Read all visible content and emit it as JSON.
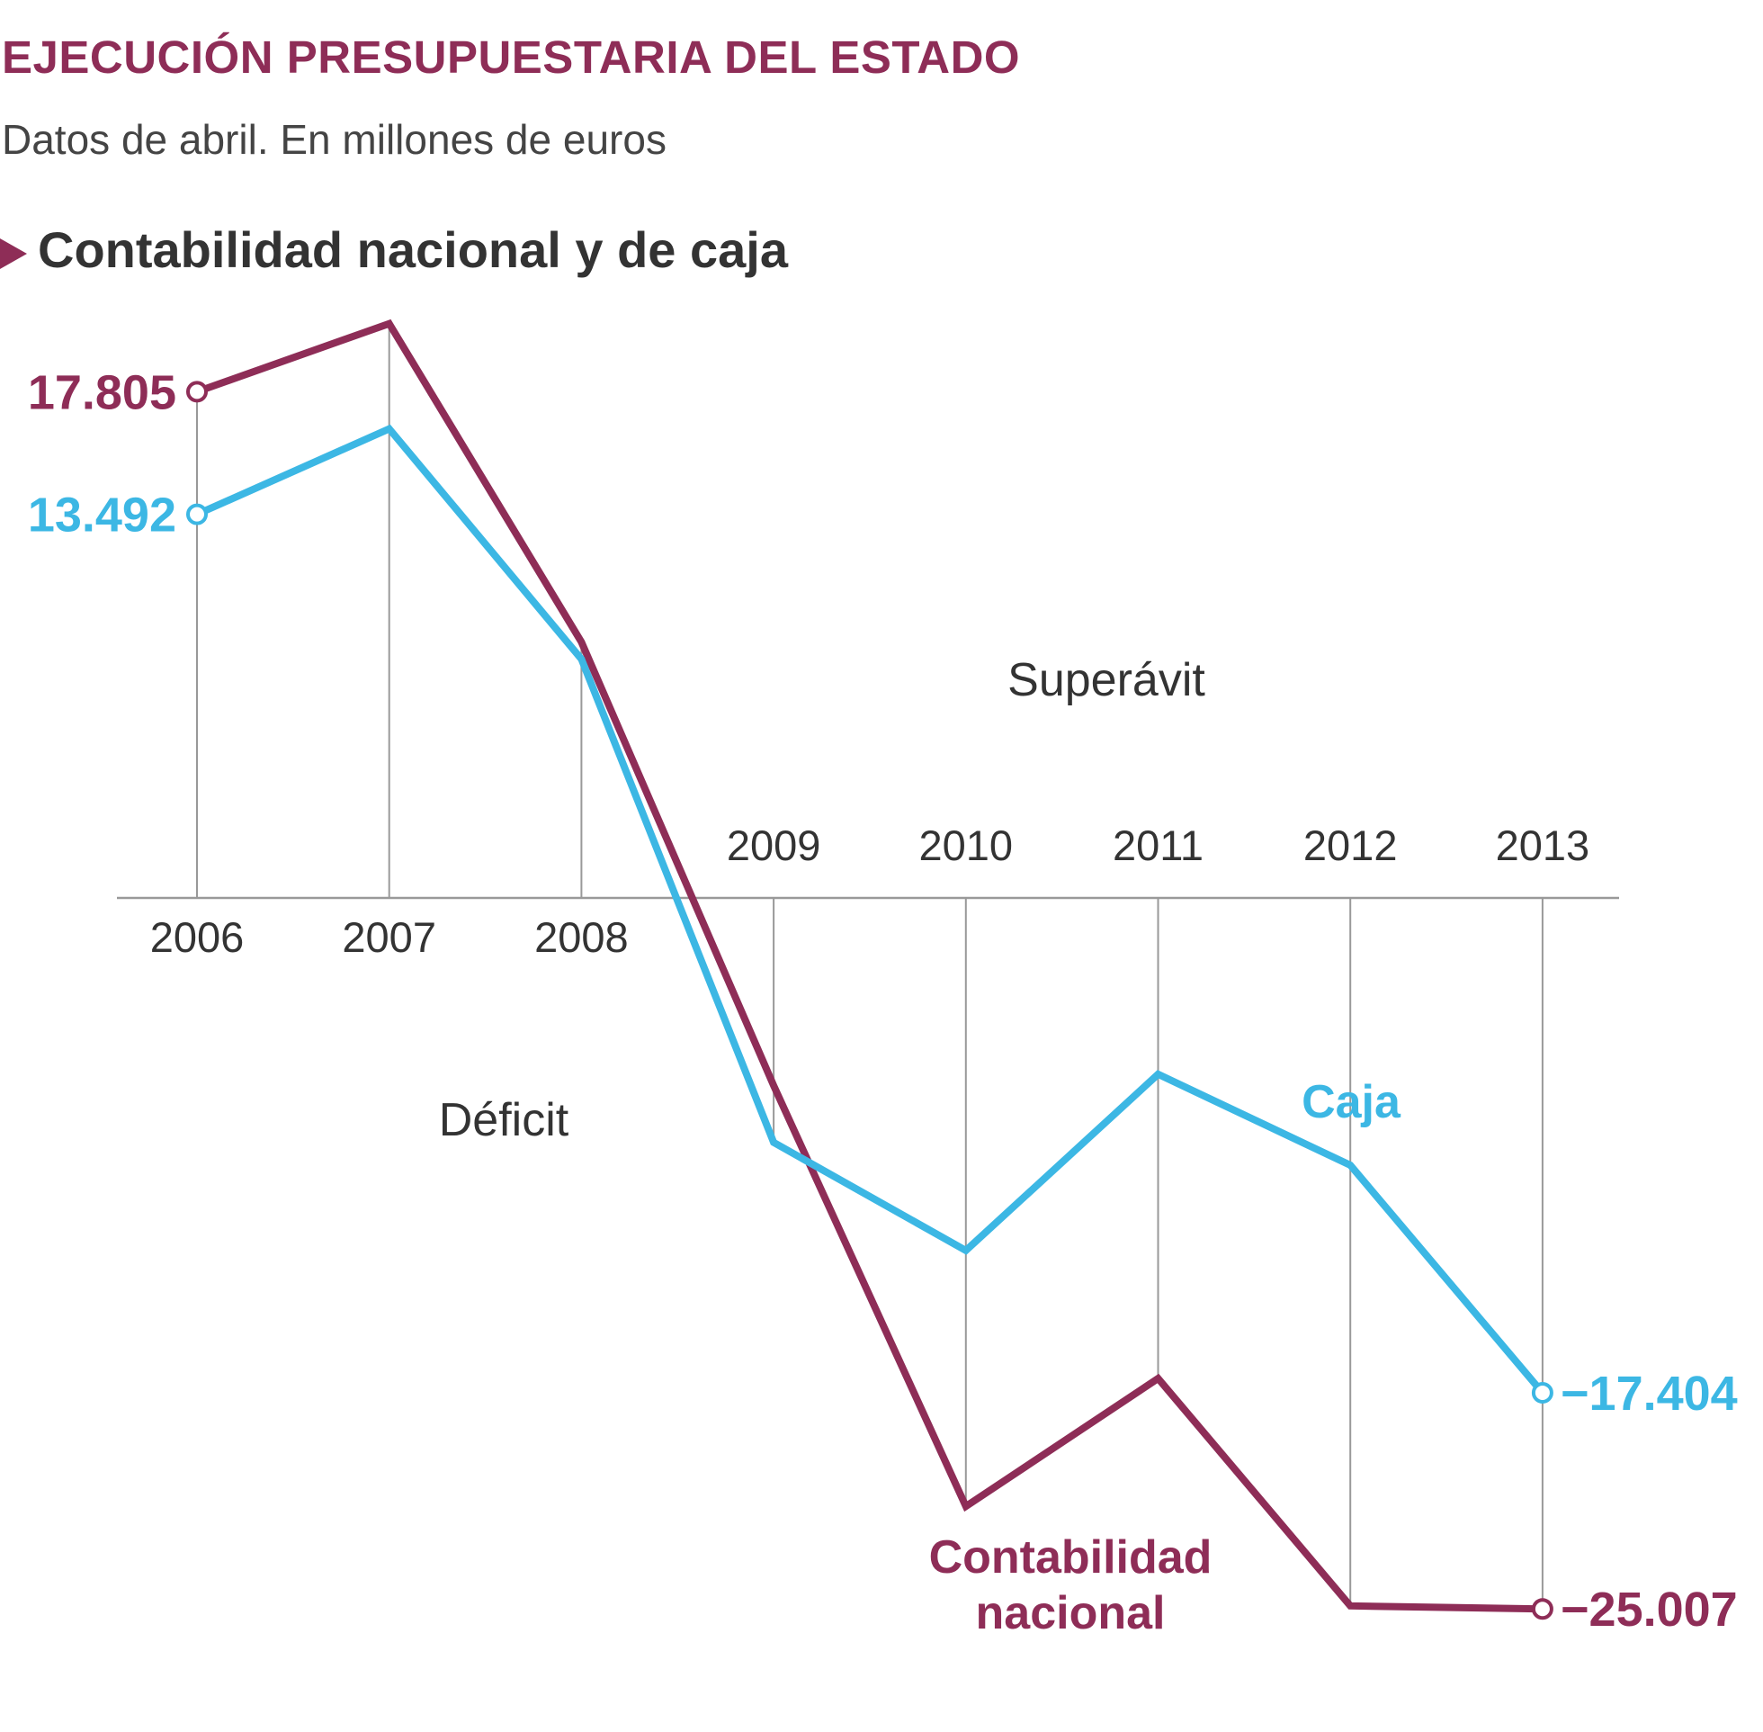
{
  "header": {
    "title": "EJECUCIÓN PRESUPUESTARIA DEL ESTADO",
    "subtitle": "Datos de abril. En millones de euros",
    "section": "Contabilidad nacional y de caja"
  },
  "colors": {
    "nacional": "#8e2d57",
    "caja": "#3cb7e4",
    "axis": "#999999"
  },
  "chart_data": {
    "type": "line",
    "title": "Contabilidad nacional y de caja",
    "categories": [
      "2006",
      "2007",
      "2008",
      "2009",
      "2010",
      "2011",
      "2012",
      "2013"
    ],
    "series": [
      {
        "name": "Contabilidad nacional",
        "values": [
          17805,
          20200,
          9000,
          -6600,
          -21400,
          -16900,
          -24900,
          -25007
        ]
      },
      {
        "name": "Caja",
        "values": [
          13492,
          16500,
          8400,
          -8600,
          -12400,
          -6200,
          -9400,
          -17404
        ]
      }
    ],
    "labels": {
      "nacional_start": "17.805",
      "nacional_end": "−25.007",
      "caja_start": "13.492",
      "caja_end": "−17.404"
    },
    "annotations": {
      "superavit": "Superávit",
      "deficit": "Déficit",
      "caja": "Caja",
      "nacional_line1": "Contabilidad",
      "nacional_line2": "nacional"
    },
    "ylim": [
      -27000,
      22000
    ],
    "grid": "vertical lines at each year"
  }
}
